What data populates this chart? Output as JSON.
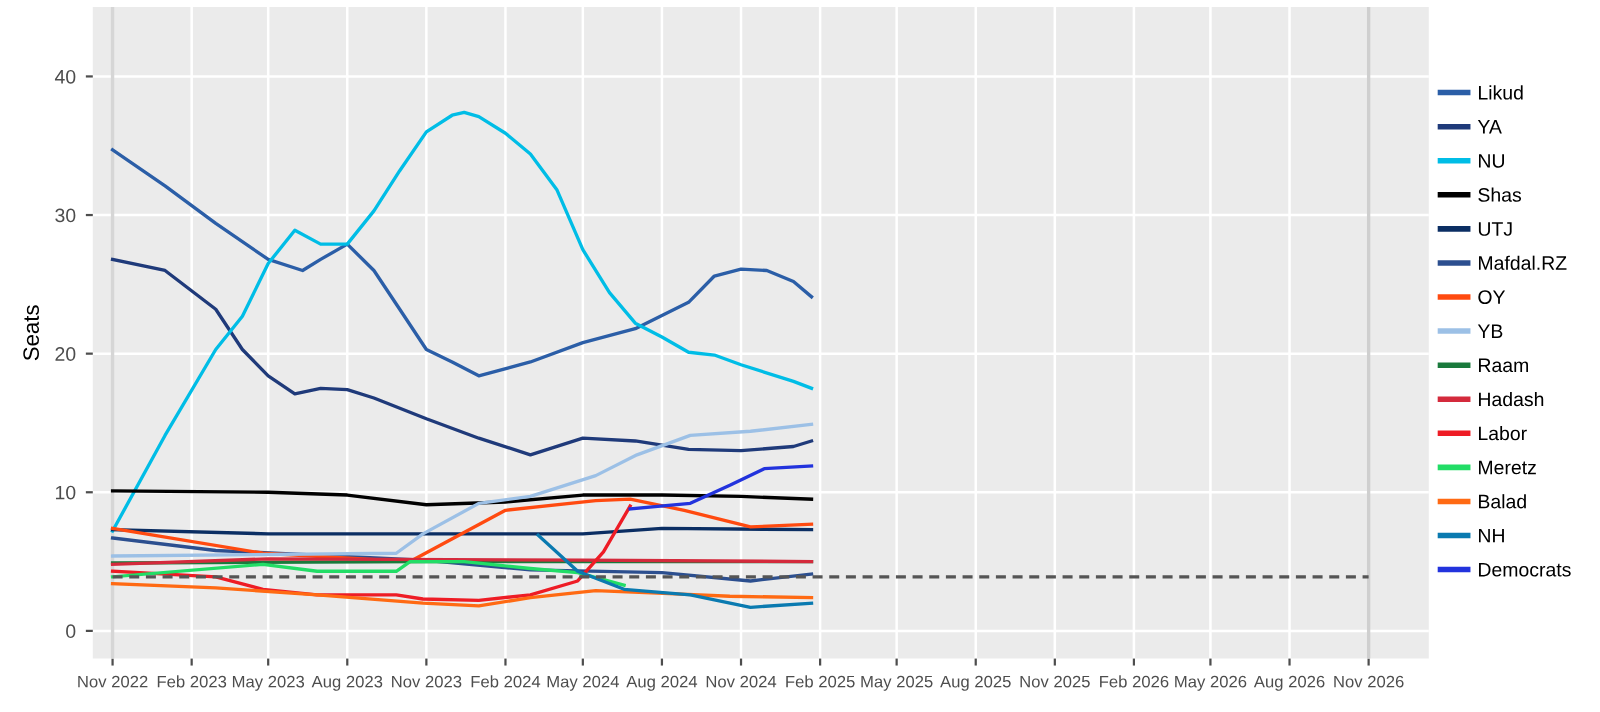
{
  "chart_data": {
    "type": "line",
    "ylabel": "Seats",
    "xlim": [
      "2022-10-09",
      "2027-01-10"
    ],
    "ylim": [
      -2,
      45
    ],
    "xticks": [
      {
        "value": "2022-11",
        "label": "Nov 2022"
      },
      {
        "value": "2023-02",
        "label": "Feb 2023"
      },
      {
        "value": "2023-05",
        "label": "May 2023"
      },
      {
        "value": "2023-08",
        "label": "Aug 2023"
      },
      {
        "value": "2023-11",
        "label": "Nov 2023"
      },
      {
        "value": "2024-02",
        "label": "Feb 2024"
      },
      {
        "value": "2024-05",
        "label": "May 2024"
      },
      {
        "value": "2024-08",
        "label": "Aug 2024"
      },
      {
        "value": "2024-11",
        "label": "Nov 2024"
      },
      {
        "value": "2025-02",
        "label": "Feb 2025"
      },
      {
        "value": "2025-05",
        "label": "May 2025"
      },
      {
        "value": "2025-08",
        "label": "Aug 2025"
      },
      {
        "value": "2025-11",
        "label": "Nov 2025"
      },
      {
        "value": "2026-02",
        "label": "Feb 2026"
      },
      {
        "value": "2026-05",
        "label": "May 2026"
      },
      {
        "value": "2026-08",
        "label": "Aug 2026"
      },
      {
        "value": "2026-11",
        "label": "Nov 2026"
      }
    ],
    "yticks": [
      0,
      10,
      20,
      30,
      40
    ],
    "grid": true,
    "legend": "right",
    "marker": "none",
    "line_style": "solid",
    "ref_lines": [
      {
        "axis": "x",
        "value": "2022-11",
        "color": "#d6d6d6"
      },
      {
        "axis": "x",
        "value": "2026-11",
        "color": "#cfcfcf"
      }
    ],
    "series": [
      {
        "name": "Likud",
        "color": "#2b5ea7",
        "x": [
          "2022-11",
          "2023-01",
          "2023-03",
          "2023-05",
          "2023-06-10",
          "2023-07",
          "2023-08",
          "2023-09",
          "2023-10",
          "2023-11",
          "2023-12",
          "2024-01",
          "2024-03",
          "2024-05",
          "2024-07",
          "2024-09",
          "2024-10",
          "2024-11",
          "2024-12",
          "2025-01",
          "2025-01-22"
        ],
        "values": [
          34.7,
          32.1,
          29.4,
          26.8,
          26.0,
          26.8,
          27.9,
          26.0,
          23.2,
          20.3,
          19.4,
          18.4,
          19.4,
          20.8,
          21.8,
          23.7,
          25.6,
          26.1,
          26.0,
          25.2,
          24.1
        ]
      },
      {
        "name": "YA",
        "color": "#1f3a7a",
        "x": [
          "2022-11",
          "2023-01",
          "2023-03",
          "2023-04",
          "2023-05",
          "2023-06",
          "2023-07",
          "2023-08",
          "2023-09",
          "2023-11",
          "2024-01",
          "2024-03",
          "2024-05",
          "2024-07",
          "2024-09",
          "2024-11",
          "2025-01",
          "2025-01-22"
        ],
        "values": [
          26.8,
          26.0,
          23.2,
          20.3,
          18.4,
          17.1,
          17.5,
          17.4,
          16.8,
          15.3,
          13.9,
          12.7,
          13.9,
          13.7,
          13.1,
          13.0,
          13.3,
          13.7
        ]
      },
      {
        "name": "NU",
        "color": "#00bde6",
        "x": [
          "2022-11",
          "2023-01",
          "2023-03",
          "2023-04",
          "2023-05",
          "2023-06",
          "2023-07",
          "2023-08",
          "2023-09",
          "2023-10",
          "2023-11",
          "2023-12",
          "2023-12-15",
          "2024-01",
          "2024-02",
          "2024-03",
          "2024-04",
          "2024-05",
          "2024-06",
          "2024-07",
          "2024-08",
          "2024-09",
          "2024-10",
          "2024-11",
          "2025-01",
          "2025-01-22"
        ],
        "values": [
          7.2,
          14.1,
          20.3,
          22.7,
          26.5,
          28.9,
          27.9,
          27.9,
          30.3,
          33.2,
          36.0,
          37.2,
          37.4,
          37.1,
          35.9,
          34.4,
          31.8,
          27.5,
          24.4,
          22.2,
          21.2,
          20.1,
          19.9,
          19.2,
          18.0,
          17.5
        ]
      },
      {
        "name": "Shas",
        "color": "#000000",
        "x": [
          "2022-11",
          "2023-05",
          "2023-08",
          "2023-11",
          "2024-02",
          "2024-05",
          "2024-08",
          "2024-11",
          "2025-01-22"
        ],
        "values": [
          10.1,
          10.0,
          9.8,
          9.1,
          9.3,
          9.8,
          9.8,
          9.7,
          9.5
        ]
      },
      {
        "name": "UTJ",
        "color": "#0b2e63",
        "x": [
          "2022-11",
          "2023-05",
          "2023-11",
          "2024-05",
          "2024-08",
          "2025-01-22"
        ],
        "values": [
          7.3,
          7.0,
          7.0,
          7.0,
          7.4,
          7.3
        ]
      },
      {
        "name": "Mafdal.RZ",
        "color": "#2c4f8f",
        "x": [
          "2022-11",
          "2023-03",
          "2023-10-28",
          "2024-03",
          "2024-08",
          "2024-11-12",
          "2025-01-22"
        ],
        "values": [
          6.7,
          5.8,
          5.1,
          4.4,
          4.2,
          3.6,
          4.1
        ]
      },
      {
        "name": "OY",
        "color": "#ff4a10",
        "x": [
          "2022-11",
          "2023-04-25",
          "2023-10-13",
          "2024-02",
          "2024-05-16",
          "2024-06-25",
          "2024-08-27",
          "2024-11-12",
          "2025-01-22"
        ],
        "values": [
          7.4,
          5.6,
          5.0,
          8.7,
          9.4,
          9.5,
          8.7,
          7.5,
          7.7
        ]
      },
      {
        "name": "YB",
        "color": "#9cc0e6",
        "x": [
          "2022-11",
          "2023-09-27",
          "2023-10-28",
          "2024-01",
          "2024-03",
          "2024-05-16",
          "2024-07-03",
          "2024-09-03",
          "2024-11-12",
          "2025-01-22"
        ],
        "values": [
          5.4,
          5.6,
          7.0,
          9.2,
          9.7,
          11.2,
          12.7,
          14.1,
          14.4,
          14.9
        ]
      },
      {
        "name": "Raam",
        "color": "#1a7a3c",
        "x": [
          "2022-11",
          "2023-11",
          "2024-11",
          "2025-01-22"
        ],
        "values": [
          4.9,
          5.0,
          5.0,
          5.0
        ]
      },
      {
        "name": "Hadash",
        "color": "#d42a3c",
        "x": [
          "2022-11",
          "2023-05",
          "2024-05",
          "2025-01-22"
        ],
        "values": [
          4.8,
          5.2,
          5.1,
          5.0
        ]
      },
      {
        "name": "Labor",
        "color": "#ee1c25",
        "x": [
          "2022-11",
          "2023-03",
          "2023-04-25",
          "2023-06-27",
          "2023-09-27",
          "2023-10-28",
          "2024-01",
          "2024-03",
          "2024-04-25",
          "2024-05-25",
          "2024-06-25"
        ],
        "values": [
          4.3,
          3.9,
          3.0,
          2.6,
          2.6,
          2.3,
          2.2,
          2.6,
          3.6,
          5.7,
          9.0
        ]
      },
      {
        "name": "Meretz",
        "color": "#22dd66",
        "x": [
          "2022-11",
          "2023-04-25",
          "2023-06-27",
          "2023-09-27",
          "2023-10-13",
          "2023-12-15",
          "2024-03",
          "2024-04-25",
          "2024-06-18"
        ],
        "values": [
          3.9,
          4.8,
          4.3,
          4.3,
          5.0,
          5.0,
          4.5,
          4.2,
          3.3
        ]
      },
      {
        "name": "Balad",
        "color": "#ff6a13",
        "x": [
          "2022-11",
          "2023-03",
          "2023-06-27",
          "2023-10-28",
          "2024-01",
          "2024-03",
          "2024-05-16",
          "2024-08-03",
          "2024-10-19",
          "2025-01-22"
        ],
        "values": [
          3.4,
          3.1,
          2.6,
          2.0,
          1.8,
          2.4,
          2.9,
          2.7,
          2.5,
          2.4
        ]
      },
      {
        "name": "NH",
        "color": "#0a7ab0",
        "x": [
          "2024-03-10",
          "2024-04-25",
          "2024-06-18",
          "2024-09-03",
          "2024-11-12",
          "2025-01-22"
        ],
        "values": [
          6.9,
          4.3,
          3.0,
          2.6,
          1.7,
          2.0
        ]
      },
      {
        "name": "Democrats",
        "color": "#2233dd",
        "x": [
          "2024-06-25",
          "2024-09-03",
          "2024-10-19",
          "2024-11-28",
          "2025-01-22"
        ],
        "values": [
          8.8,
          9.2,
          10.5,
          11.7,
          11.9
        ]
      },
      {
        "color": "#555555",
        "line_style": "dashed",
        "x": [
          "2022-11",
          "2026-11"
        ],
        "values": [
          3.9,
          3.9
        ]
      }
    ]
  }
}
